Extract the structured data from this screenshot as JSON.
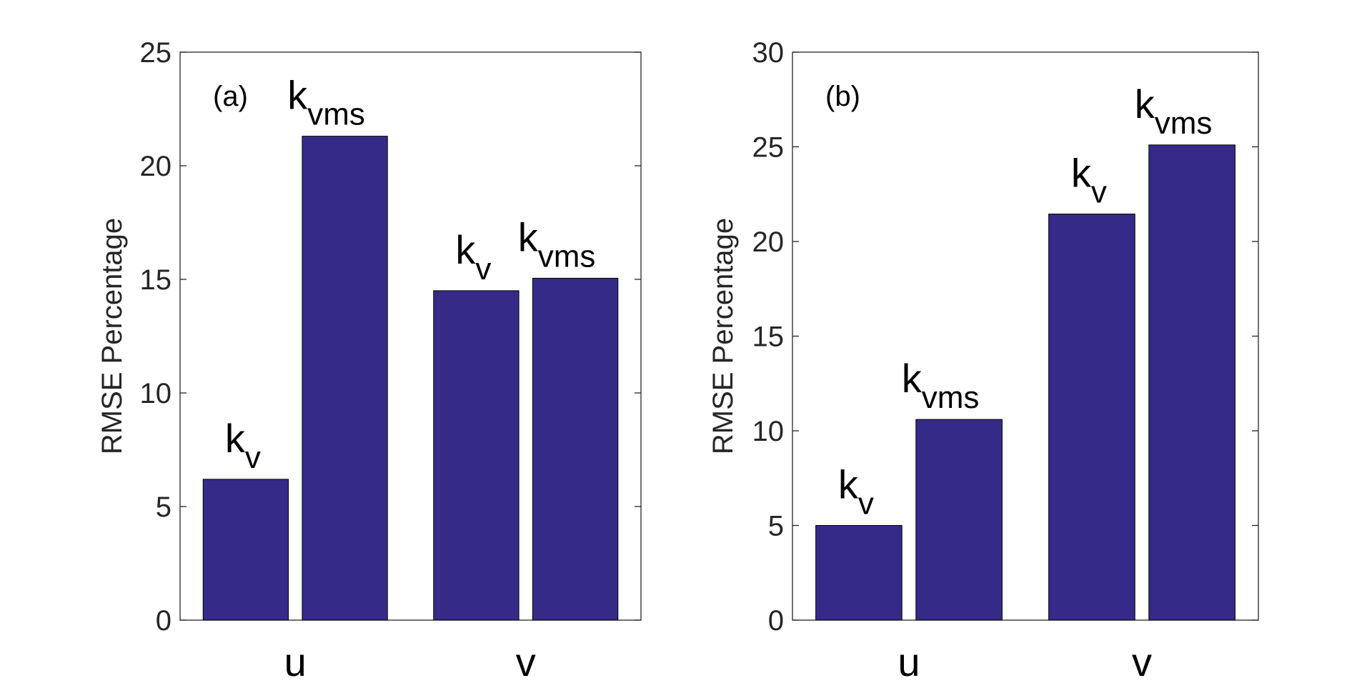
{
  "colors": {
    "bar": "#352a87",
    "axis": "#262626",
    "background": "#ffffff"
  },
  "chart_data": [
    {
      "type": "bar",
      "panel_label": "(a)",
      "categories": [
        "u",
        "v"
      ],
      "ylabel": "RMSE Percentage",
      "ylim": [
        0,
        25
      ],
      "yticks": [
        "0",
        "5",
        "10",
        "15",
        "20",
        "25"
      ],
      "grid": false,
      "legend": "none",
      "series": [
        {
          "values": [
            6.2,
            14.5
          ],
          "labels": [
            {
              "base": "k",
              "sub": "v"
            },
            {
              "base": "k",
              "sub": "v"
            }
          ]
        },
        {
          "values": [
            21.3,
            15.05
          ],
          "labels": [
            {
              "base": "k",
              "sub": "vms"
            },
            {
              "base": "k",
              "sub": "vms"
            }
          ]
        }
      ]
    },
    {
      "type": "bar",
      "panel_label": "(b)",
      "categories": [
        "u",
        "v"
      ],
      "ylabel": "RMSE Percentage",
      "ylim": [
        0,
        30
      ],
      "yticks": [
        "0",
        "5",
        "10",
        "15",
        "20",
        "25",
        "30"
      ],
      "grid": false,
      "legend": "none",
      "series": [
        {
          "values": [
            5.0,
            21.45
          ],
          "labels": [
            {
              "base": "k",
              "sub": "v"
            },
            {
              "base": "k",
              "sub": "v"
            }
          ]
        },
        {
          "values": [
            10.6,
            25.1
          ],
          "labels": [
            {
              "base": "k",
              "sub": "vms"
            },
            {
              "base": "k",
              "sub": "vms"
            }
          ]
        }
      ]
    }
  ]
}
